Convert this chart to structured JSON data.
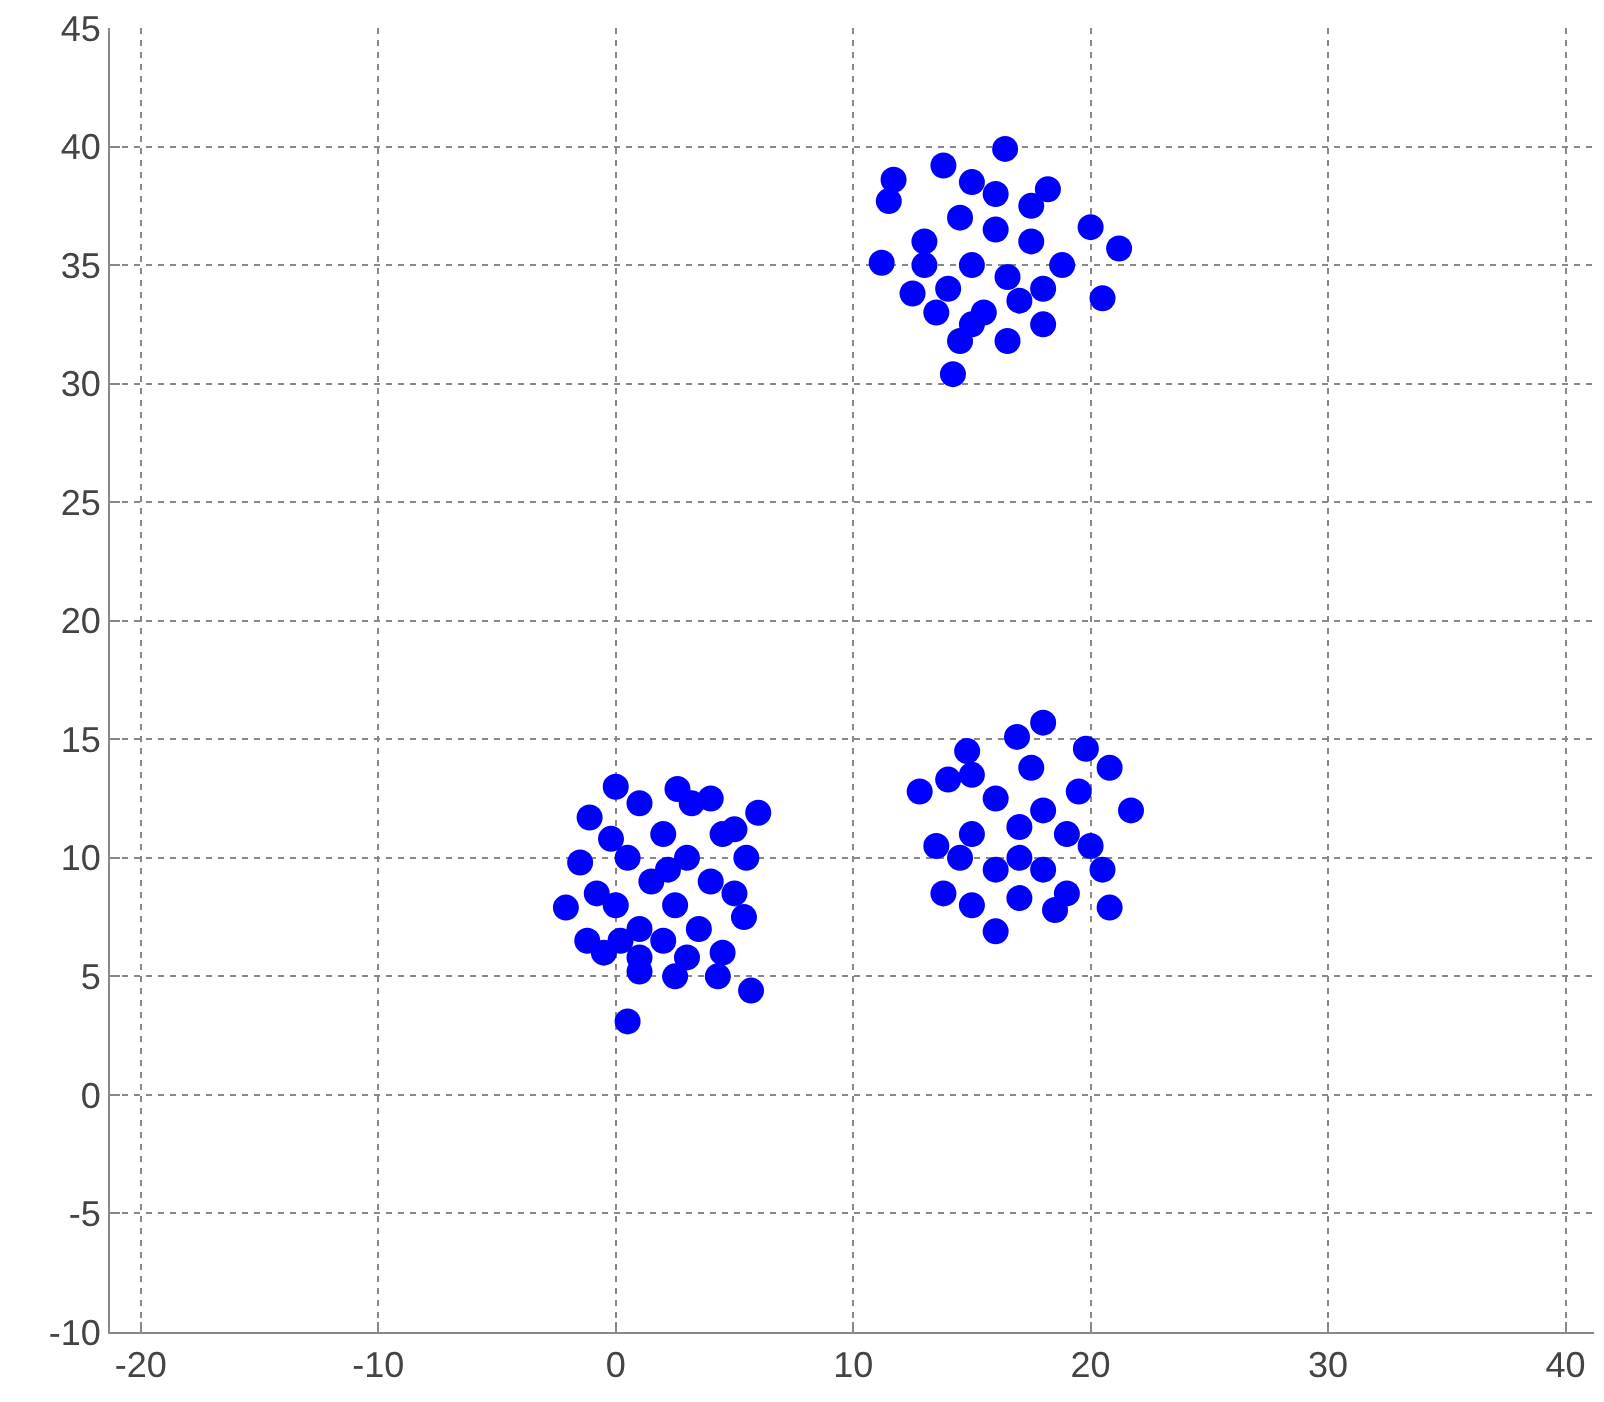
{
  "chart_data": {
    "type": "scatter",
    "marker": "circle",
    "grid": true,
    "xlim": [
      -21.3,
      41.2
    ],
    "ylim": [
      -10,
      45
    ],
    "xticks": [
      -20,
      -10,
      0,
      10,
      20,
      30,
      40
    ],
    "yticks": [
      -10,
      -5,
      0,
      5,
      10,
      15,
      20,
      25,
      30,
      35,
      40,
      45
    ],
    "series": [
      {
        "color": "#0000ff",
        "x": [
          -2.1,
          -1.1,
          0.0,
          2.6,
          4.0,
          6.0,
          5.5,
          5.4,
          5.7,
          4.3,
          2.5,
          1.0,
          0.5,
          -0.5,
          -1.5,
          -1.2,
          1.0,
          3.2,
          5.0,
          -0.2,
          0,
          0.5,
          1,
          1.5,
          2,
          2,
          2.5,
          3,
          3.5,
          4,
          4.5,
          4.5,
          1,
          3,
          0.2,
          5,
          -0.8,
          2.2,
          16.0,
          20.8,
          18.0,
          21.7,
          12.8,
          16.9,
          14.8,
          13.5,
          13.8,
          15.0,
          18.5,
          20.5,
          20.8,
          19.8,
          14.0,
          19.0,
          17,
          15,
          16,
          17,
          18,
          19,
          16,
          18,
          15,
          17.5,
          19.5,
          14.5,
          20,
          17,
          11.7,
          13.8,
          16.4,
          20.0,
          21.2,
          20.5,
          14.2,
          11.2,
          11.5,
          15.0,
          18.2,
          18.8,
          18.0,
          16.5,
          14.5,
          12.5,
          13.5,
          17.5,
          13,
          14,
          14.5,
          15,
          15.5,
          16,
          16.5,
          17,
          17.5,
          18,
          13,
          15,
          16
        ],
        "values": [
          7.9,
          11.7,
          13.0,
          12.9,
          12.5,
          11.9,
          10,
          7.5,
          4.4,
          5.0,
          5.0,
          5.2,
          3.1,
          6.0,
          9.8,
          6.5,
          12.3,
          12.3,
          11.2,
          10.8,
          8,
          10,
          7,
          9,
          6.5,
          11,
          8,
          10,
          7,
          9,
          11,
          6,
          5.8,
          5.8,
          6.5,
          8.5,
          8.5,
          9.5,
          6.9,
          7.9,
          15.7,
          12.0,
          12.8,
          15.1,
          14.5,
          10.5,
          8.5,
          8.0,
          7.8,
          9.5,
          13.8,
          14.6,
          13.3,
          8.5,
          8.3,
          11,
          12.5,
          10,
          12,
          11,
          9.5,
          9.5,
          13.5,
          13.8,
          12.8,
          10,
          10.5,
          11.3,
          38.6,
          39.2,
          39.9,
          36.6,
          35.7,
          33.6,
          30.4,
          35.1,
          37.7,
          38.5,
          38.2,
          35,
          32.5,
          31.8,
          31.8,
          33.8,
          33,
          37.5,
          36,
          34,
          37,
          35,
          33,
          36.5,
          34.5,
          33.5,
          36,
          34,
          35,
          32.5,
          38
        ]
      }
    ]
  }
}
